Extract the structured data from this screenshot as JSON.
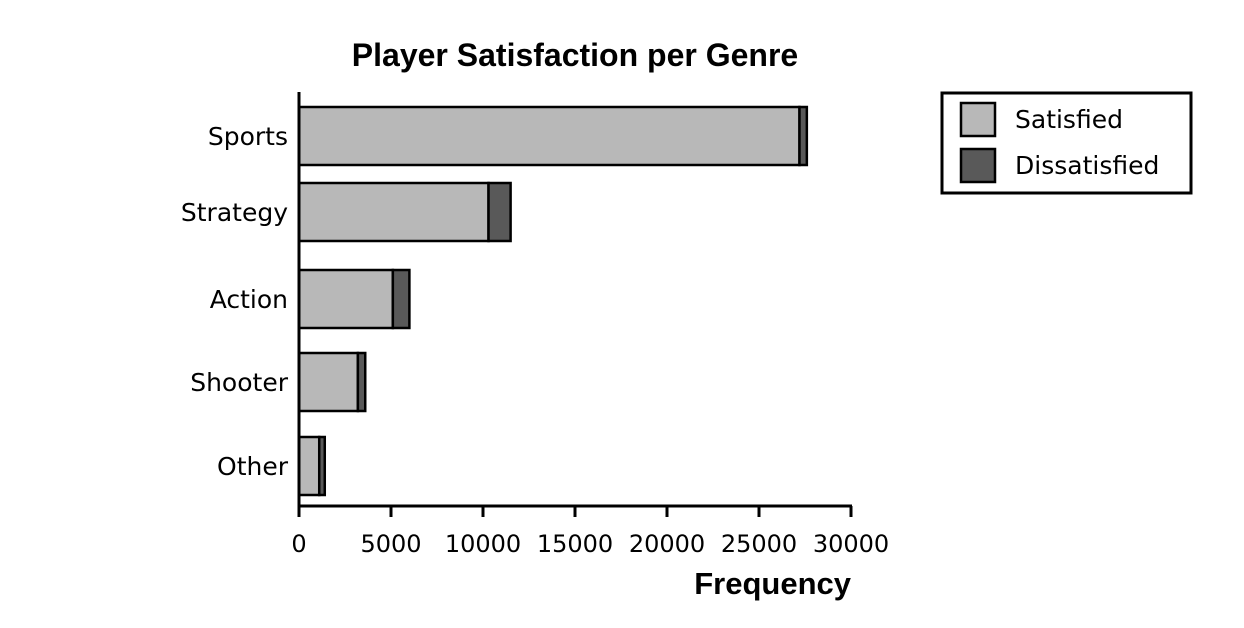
{
  "chart_data": {
    "type": "bar",
    "orientation": "horizontal",
    "stacked": true,
    "title": "Player Satisfaction per Genre",
    "xlabel": "Frequency",
    "ylabel": "",
    "categories": [
      "Sports",
      "Strategy",
      "Action",
      "Shooter",
      "Other"
    ],
    "series": [
      {
        "name": "Satisfied",
        "values": [
          27200,
          10300,
          5100,
          3200,
          1100
        ],
        "color": "#b8b8b8"
      },
      {
        "name": "Dissatisfied",
        "values": [
          400,
          1200,
          900,
          400,
          300
        ],
        "color": "#595959"
      }
    ],
    "xlim": [
      0,
      30000
    ],
    "xticks": [
      "0",
      "5000",
      "10000",
      "15000",
      "20000",
      "25000",
      "30000"
    ],
    "grid": false,
    "legend_position": "top-right"
  }
}
